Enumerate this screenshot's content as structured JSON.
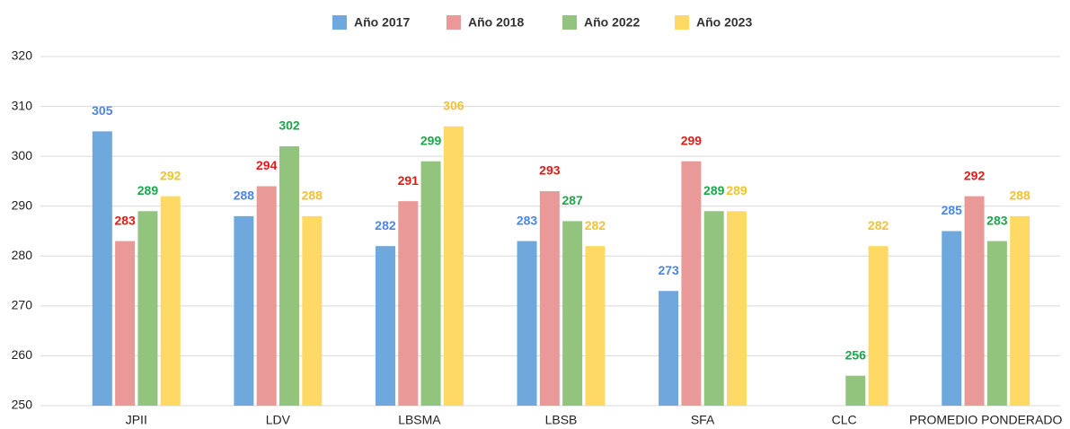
{
  "chart_data": {
    "type": "bar",
    "categories": [
      "JPII",
      "LDV",
      "LBSMA",
      "LBSB",
      "SFA",
      "CLC",
      "PROMEDIO PONDERADO"
    ],
    "series": [
      {
        "name": "Año 2017",
        "color": "#6fa8dc",
        "label_color": "#4a86e8",
        "values": [
          305,
          288,
          282,
          283,
          273,
          null,
          285
        ]
      },
      {
        "name": "Año 2018",
        "color": "#ea9999",
        "label_color": "#e61919",
        "values": [
          283,
          294,
          291,
          293,
          299,
          null,
          292
        ]
      },
      {
        "name": "Año 2022",
        "color": "#93c47d",
        "label_color": "#1aa84a",
        "values": [
          289,
          302,
          299,
          287,
          289,
          256,
          283
        ]
      },
      {
        "name": "Año 2023",
        "color": "#ffd966",
        "label_color": "#f1c232",
        "values": [
          292,
          288,
          306,
          282,
          289,
          282,
          288
        ]
      }
    ],
    "ylim": [
      250,
      320
    ],
    "yticks": [
      250,
      260,
      270,
      280,
      290,
      300,
      310,
      320
    ],
    "grid": true,
    "legend": "top"
  }
}
